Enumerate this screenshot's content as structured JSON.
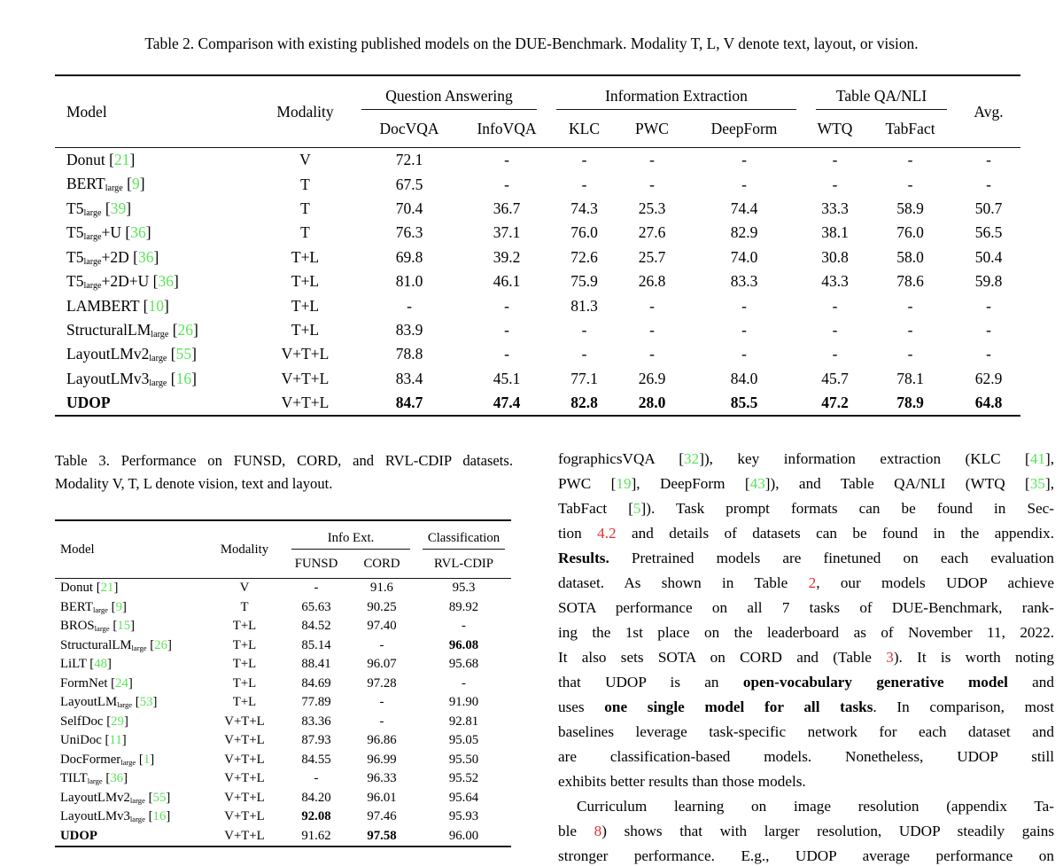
{
  "colors": {
    "citation_green": "#5ae45a",
    "ref_red": "#e03030",
    "rule": "#141414",
    "text": "#000000",
    "background": "#ffffff"
  },
  "table2": {
    "caption": "Table 2. Comparison with existing published models on the DUE-Benchmark. Modality T, L, V denote text, layout, or vision.",
    "header": {
      "model": "Model",
      "modality": "Modality",
      "avg": "Avg.",
      "groups": [
        {
          "label": "Question Answering",
          "cols": [
            "DocVQA",
            "InfoVQA"
          ]
        },
        {
          "label": "Information Extraction",
          "cols": [
            "KLC",
            "PWC",
            "DeepForm"
          ]
        },
        {
          "label": "Table QA/NLI",
          "cols": [
            "WTQ",
            "TabFact"
          ]
        }
      ]
    },
    "rows": [
      {
        "name": "Donut",
        "sub": "",
        "suffix": "",
        "cite": "21",
        "bold_name": false,
        "modality": "V",
        "values": [
          "72.1",
          "-",
          "-",
          "-",
          "-",
          "-",
          "-",
          "-"
        ],
        "bold_idx": []
      },
      {
        "name": "BERT",
        "sub": "large",
        "suffix": "",
        "cite": "9",
        "bold_name": false,
        "modality": "T",
        "values": [
          "67.5",
          "-",
          "-",
          "-",
          "-",
          "-",
          "-",
          "-"
        ],
        "bold_idx": []
      },
      {
        "name": "T5",
        "sub": "large",
        "suffix": "",
        "cite": "39",
        "bold_name": false,
        "modality": "T",
        "values": [
          "70.4",
          "36.7",
          "74.3",
          "25.3",
          "74.4",
          "33.3",
          "58.9",
          "50.7"
        ],
        "bold_idx": []
      },
      {
        "name": "T5",
        "sub": "large",
        "suffix": "+U",
        "cite": "36",
        "bold_name": false,
        "modality": "T",
        "values": [
          "76.3",
          "37.1",
          "76.0",
          "27.6",
          "82.9",
          "38.1",
          "76.0",
          "56.5"
        ],
        "bold_idx": []
      },
      {
        "name": "T5",
        "sub": "large",
        "suffix": "+2D",
        "cite": "36",
        "bold_name": false,
        "modality": "T+L",
        "values": [
          "69.8",
          "39.2",
          "72.6",
          "25.7",
          "74.0",
          "30.8",
          "58.0",
          "50.4"
        ],
        "bold_idx": []
      },
      {
        "name": "T5",
        "sub": "large",
        "suffix": "+2D+U",
        "cite": "36",
        "bold_name": false,
        "modality": "T+L",
        "values": [
          "81.0",
          "46.1",
          "75.9",
          "26.8",
          "83.3",
          "43.3",
          "78.6",
          "59.8"
        ],
        "bold_idx": []
      },
      {
        "name": "LAMBERT",
        "sub": "",
        "suffix": "",
        "cite": "10",
        "bold_name": false,
        "modality": "T+L",
        "values": [
          "-",
          "-",
          "81.3",
          "-",
          "-",
          "-",
          "-",
          "-"
        ],
        "bold_idx": []
      },
      {
        "name": "StructuralLM",
        "sub": "large",
        "suffix": "",
        "cite": "26",
        "bold_name": false,
        "modality": "T+L",
        "values": [
          "83.9",
          "-",
          "-",
          "-",
          "-",
          "-",
          "-",
          "-"
        ],
        "bold_idx": []
      },
      {
        "name": "LayoutLMv2",
        "sub": "large",
        "suffix": "",
        "cite": "55",
        "bold_name": false,
        "modality": "V+T+L",
        "values": [
          "78.8",
          "-",
          "-",
          "-",
          "-",
          "-",
          "-",
          "-"
        ],
        "bold_idx": []
      },
      {
        "name": "LayoutLMv3",
        "sub": "large",
        "suffix": "",
        "cite": "16",
        "bold_name": false,
        "modality": "V+T+L",
        "values": [
          "83.4",
          "45.1",
          "77.1",
          "26.9",
          "84.0",
          "45.7",
          "78.1",
          "62.9"
        ],
        "bold_idx": []
      },
      {
        "name": "UDOP",
        "sub": "",
        "suffix": "",
        "cite": null,
        "bold_name": true,
        "modality": "V+T+L",
        "values": [
          "84.7",
          "47.4",
          "82.8",
          "28.0",
          "85.5",
          "47.2",
          "78.9",
          "64.8"
        ],
        "bold_idx": [
          0,
          1,
          2,
          3,
          4,
          5,
          6,
          7
        ]
      }
    ]
  },
  "table3": {
    "caption_lines": [
      "Table 3. Performance on FUNSD, CORD, and RVL-CDIP datasets.",
      "Modality V, T, L denote vision, text and layout."
    ],
    "header": {
      "model": "Model",
      "modality": "Modality",
      "groups": [
        {
          "label": "Info Ext.",
          "cols": [
            "FUNSD",
            "CORD"
          ]
        },
        {
          "label": "Classification",
          "cols": [
            "RVL-CDIP"
          ]
        }
      ]
    },
    "rows": [
      {
        "name": "Donut",
        "sub": "",
        "suffix": "",
        "cite": "21",
        "bold_name": false,
        "modality": "V",
        "values": [
          "-",
          "91.6",
          "95.3"
        ],
        "bold_idx": []
      },
      {
        "name": "BERT",
        "sub": "large",
        "suffix": "",
        "cite": "9",
        "bold_name": false,
        "modality": "T",
        "values": [
          "65.63",
          "90.25",
          "89.92"
        ],
        "bold_idx": []
      },
      {
        "name": "BROS",
        "sub": "large",
        "suffix": "",
        "cite": "15",
        "bold_name": false,
        "modality": "T+L",
        "values": [
          "84.52",
          "97.40",
          "-"
        ],
        "bold_idx": []
      },
      {
        "name": "StructuralLM",
        "sub": "large",
        "suffix": "",
        "cite": "26",
        "bold_name": false,
        "modality": "T+L",
        "values": [
          "85.14",
          "-",
          "96.08"
        ],
        "bold_idx": [
          2
        ]
      },
      {
        "name": "LiLT",
        "sub": "",
        "suffix": "",
        "cite": "48",
        "bold_name": false,
        "modality": "T+L",
        "values": [
          "88.41",
          "96.07",
          "95.68"
        ],
        "bold_idx": []
      },
      {
        "name": "FormNet",
        "sub": "",
        "suffix": "",
        "cite": "24",
        "bold_name": false,
        "modality": "T+L",
        "values": [
          "84.69",
          "97.28",
          "-"
        ],
        "bold_idx": []
      },
      {
        "name": "LayoutLM",
        "sub": "large",
        "suffix": "",
        "cite": "53",
        "bold_name": false,
        "modality": "T+L",
        "values": [
          "77.89",
          "-",
          "91.90"
        ],
        "bold_idx": []
      },
      {
        "name": "SelfDoc",
        "sub": "",
        "suffix": "",
        "cite": "29",
        "bold_name": false,
        "modality": "V+T+L",
        "values": [
          "83.36",
          "-",
          "92.81"
        ],
        "bold_idx": []
      },
      {
        "name": "UniDoc",
        "sub": "",
        "suffix": "",
        "cite": "11",
        "bold_name": false,
        "modality": "V+T+L",
        "values": [
          "87.93",
          "96.86",
          "95.05"
        ],
        "bold_idx": []
      },
      {
        "name": "DocFormer",
        "sub": "large",
        "suffix": "",
        "cite": "1",
        "bold_name": false,
        "modality": "V+T+L",
        "values": [
          "84.55",
          "96.99",
          "95.50"
        ],
        "bold_idx": []
      },
      {
        "name": "TILT",
        "sub": "large",
        "suffix": "",
        "cite": "36",
        "bold_name": false,
        "modality": "V+T+L",
        "values": [
          "-",
          "96.33",
          "95.52"
        ],
        "bold_idx": []
      },
      {
        "name": "LayoutLMv2",
        "sub": "large",
        "suffix": "",
        "cite": "55",
        "bold_name": false,
        "modality": "V+T+L",
        "values": [
          "84.20",
          "96.01",
          "95.64"
        ],
        "bold_idx": []
      },
      {
        "name": "LayoutLMv3",
        "sub": "large",
        "suffix": "",
        "cite": "16",
        "bold_name": false,
        "modality": "V+T+L",
        "values": [
          "92.08",
          "97.46",
          "95.93"
        ],
        "bold_idx": [
          0
        ]
      },
      {
        "name": "UDOP",
        "sub": "",
        "suffix": "",
        "cite": null,
        "bold_name": true,
        "modality": "V+T+L",
        "values": [
          "91.62",
          "97.58",
          "96.00"
        ],
        "bold_idx": [
          1
        ]
      }
    ]
  },
  "body_text": {
    "lines": [
      {
        "justify": true,
        "indent": false,
        "segs": [
          {
            "t": "fographicsVQA ["
          },
          {
            "t": "32",
            "c": "g"
          },
          {
            "t": "]), key information extraction (KLC ["
          },
          {
            "t": "41",
            "c": "g"
          },
          {
            "t": "],"
          }
        ]
      },
      {
        "justify": true,
        "indent": false,
        "segs": [
          {
            "t": "PWC ["
          },
          {
            "t": "19",
            "c": "g"
          },
          {
            "t": "], DeepForm ["
          },
          {
            "t": "43",
            "c": "g"
          },
          {
            "t": "]), and Table QA/NLI (WTQ ["
          },
          {
            "t": "35",
            "c": "g"
          },
          {
            "t": "],"
          }
        ]
      },
      {
        "justify": true,
        "indent": false,
        "segs": [
          {
            "t": "TabFact ["
          },
          {
            "t": "5",
            "c": "g"
          },
          {
            "t": "]). Task prompt formats can be found in Sec-"
          }
        ]
      },
      {
        "justify": true,
        "indent": false,
        "segs": [
          {
            "t": "tion "
          },
          {
            "t": "4.2",
            "c": "r"
          },
          {
            "t": " and details of datasets can be found in the appendix."
          }
        ]
      },
      {
        "justify": true,
        "indent": false,
        "segs": [
          {
            "t": "Results.",
            "b": true
          },
          {
            "t": " Pretrained models are finetuned on each evaluation"
          }
        ]
      },
      {
        "justify": true,
        "indent": false,
        "segs": [
          {
            "t": "dataset. As shown in Table "
          },
          {
            "t": "2",
            "c": "r"
          },
          {
            "t": ", our models UDOP achieve"
          }
        ]
      },
      {
        "justify": true,
        "indent": false,
        "segs": [
          {
            "t": "SOTA performance on all 7 tasks of DUE-Benchmark, rank-"
          }
        ]
      },
      {
        "justify": true,
        "indent": false,
        "segs": [
          {
            "t": "ing the 1st place on the leaderboard as of November 11, 2022."
          }
        ]
      },
      {
        "justify": true,
        "indent": false,
        "segs": [
          {
            "t": "It also sets SOTA on CORD and (Table "
          },
          {
            "t": "3",
            "c": "r"
          },
          {
            "t": "). It is worth noting"
          }
        ]
      },
      {
        "justify": true,
        "indent": false,
        "segs": [
          {
            "t": "that UDOP is an "
          },
          {
            "t": "open-vocabulary generative model",
            "b": true
          },
          {
            "t": " and"
          }
        ]
      },
      {
        "justify": true,
        "indent": false,
        "segs": [
          {
            "t": "uses "
          },
          {
            "t": "one single model for all tasks",
            "b": true
          },
          {
            "t": ". In comparison, most"
          }
        ]
      },
      {
        "justify": true,
        "indent": false,
        "segs": [
          {
            "t": "baselines leverage task-specific network for each dataset and"
          }
        ]
      },
      {
        "justify": true,
        "indent": false,
        "segs": [
          {
            "t": "are classification-based models. Nonetheless, UDOP still"
          }
        ]
      },
      {
        "justify": false,
        "indent": false,
        "segs": [
          {
            "t": "exhibits better results than those models."
          }
        ]
      },
      {
        "justify": true,
        "indent": true,
        "segs": [
          {
            "t": "Curriculum learning on image resolution (appendix Ta-"
          }
        ]
      },
      {
        "justify": true,
        "indent": false,
        "segs": [
          {
            "t": "ble "
          },
          {
            "t": "8",
            "c": "r"
          },
          {
            "t": ") shows that with larger resolution, UDOP steadily gains"
          }
        ]
      },
      {
        "justify": true,
        "indent": false,
        "segs": [
          {
            "t": "stronger performance. E.g., UDOP average performance on"
          }
        ]
      }
    ]
  }
}
